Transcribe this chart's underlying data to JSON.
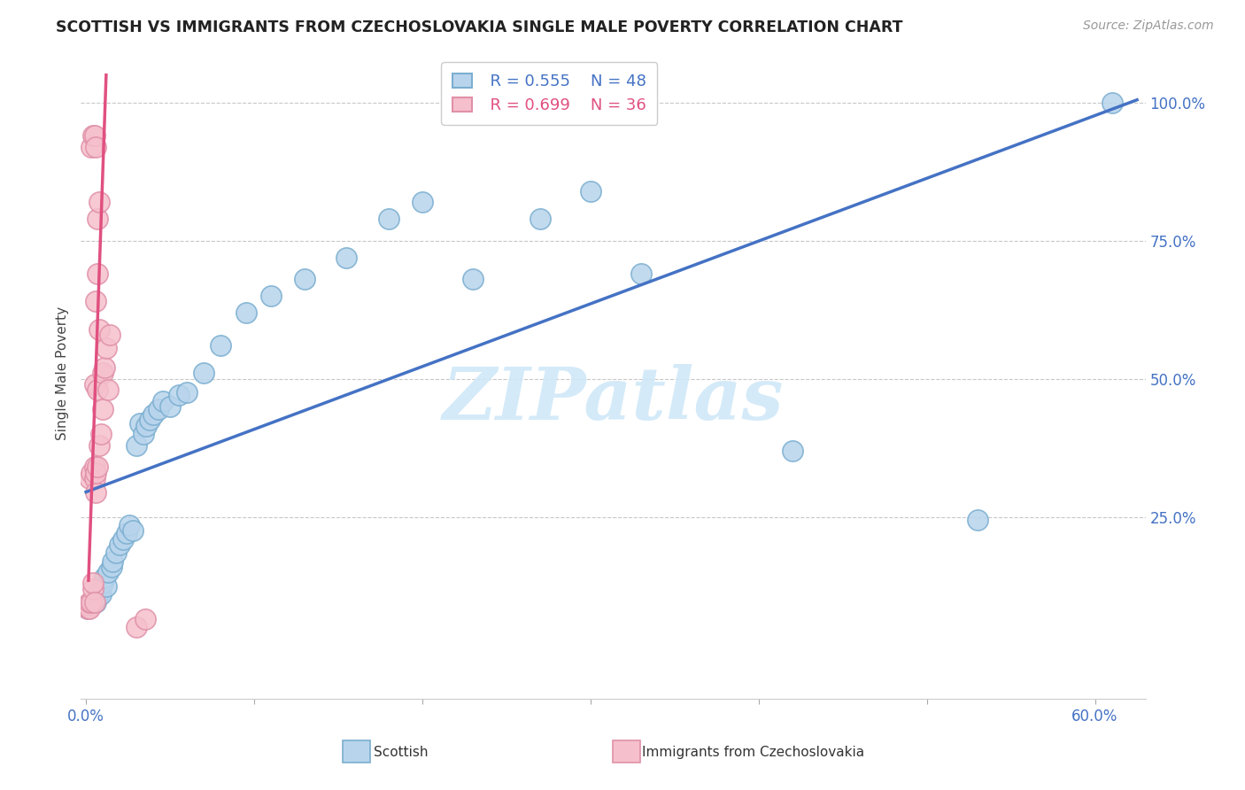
{
  "title": "SCOTTISH VS IMMIGRANTS FROM CZECHOSLOVAKIA SINGLE MALE POVERTY CORRELATION CHART",
  "source": "Source: ZipAtlas.com",
  "ylabel": "Single Male Poverty",
  "xlim": [
    -0.003,
    0.63
  ],
  "ylim": [
    -0.08,
    1.1
  ],
  "legend_r_blue": "R = 0.555",
  "legend_n_blue": "N = 48",
  "legend_r_pink": "R = 0.699",
  "legend_n_pink": "N = 36",
  "legend_label_blue": "Scottish",
  "legend_label_pink": "Immigrants from Czechoslovakia",
  "blue_fill": "#b8d4ec",
  "blue_edge": "#7aaed0",
  "pink_fill": "#f5c0cc",
  "pink_edge": "#e090a8",
  "line_blue_color": "#4472c4",
  "line_pink_color": "#e05080",
  "watermark": "ZIPatlas",
  "watermark_color": "#d0e8f8",
  "blue_scatter_x": [
    0.001,
    0.002,
    0.003,
    0.004,
    0.005,
    0.006,
    0.007,
    0.007,
    0.008,
    0.009,
    0.01,
    0.011,
    0.012,
    0.013,
    0.015,
    0.016,
    0.018,
    0.02,
    0.022,
    0.024,
    0.026,
    0.028,
    0.03,
    0.032,
    0.034,
    0.036,
    0.038,
    0.04,
    0.043,
    0.046,
    0.05,
    0.055,
    0.06,
    0.07,
    0.08,
    0.095,
    0.11,
    0.13,
    0.155,
    0.18,
    0.2,
    0.23,
    0.27,
    0.3,
    0.33,
    0.42,
    0.53,
    0.61
  ],
  "blue_scatter_y": [
    0.085,
    0.09,
    0.092,
    0.095,
    0.1,
    0.095,
    0.11,
    0.105,
    0.115,
    0.11,
    0.13,
    0.14,
    0.125,
    0.15,
    0.16,
    0.17,
    0.185,
    0.2,
    0.21,
    0.22,
    0.235,
    0.225,
    0.38,
    0.42,
    0.4,
    0.415,
    0.425,
    0.435,
    0.445,
    0.46,
    0.45,
    0.47,
    0.475,
    0.51,
    0.56,
    0.62,
    0.65,
    0.68,
    0.72,
    0.79,
    0.82,
    0.68,
    0.79,
    0.84,
    0.69,
    0.37,
    0.245,
    1.0
  ],
  "pink_scatter_x": [
    0.001,
    0.001,
    0.002,
    0.002,
    0.002,
    0.003,
    0.003,
    0.003,
    0.004,
    0.004,
    0.004,
    0.005,
    0.005,
    0.005,
    0.005,
    0.005,
    0.006,
    0.006,
    0.006,
    0.006,
    0.007,
    0.007,
    0.007,
    0.007,
    0.008,
    0.008,
    0.008,
    0.009,
    0.01,
    0.01,
    0.011,
    0.012,
    0.013,
    0.014,
    0.03,
    0.035
  ],
  "pink_scatter_y": [
    0.085,
    0.09,
    0.085,
    0.095,
    0.32,
    0.095,
    0.33,
    0.92,
    0.12,
    0.13,
    0.94,
    0.095,
    0.32,
    0.34,
    0.49,
    0.94,
    0.295,
    0.33,
    0.64,
    0.92,
    0.34,
    0.48,
    0.69,
    0.79,
    0.38,
    0.59,
    0.82,
    0.4,
    0.445,
    0.51,
    0.52,
    0.555,
    0.48,
    0.58,
    0.05,
    0.065
  ],
  "blue_line_x": [
    0.0,
    0.625
  ],
  "blue_line_y": [
    0.295,
    1.005
  ],
  "pink_line_x": [
    0.0015,
    0.012
  ],
  "pink_line_y": [
    0.135,
    1.05
  ]
}
